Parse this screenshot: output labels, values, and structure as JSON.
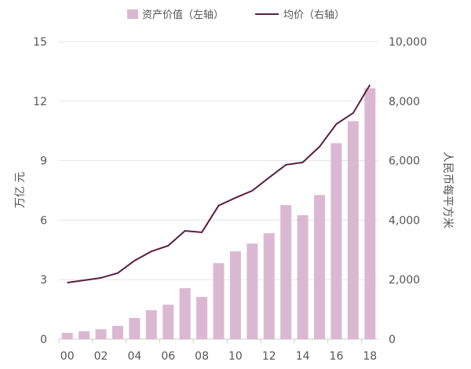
{
  "chart_data": {
    "type": "bar+line",
    "categories": [
      "00",
      "01",
      "02",
      "03",
      "04",
      "05",
      "06",
      "07",
      "08",
      "09",
      "10",
      "11",
      "12",
      "13",
      "14",
      "15",
      "16",
      "17",
      "18"
    ],
    "xtick_labels": [
      "00",
      "02",
      "04",
      "06",
      "08",
      "10",
      "12",
      "14",
      "16",
      "18"
    ],
    "series": [
      {
        "name": "资产价值（左轴）",
        "type": "bar",
        "axis": "left",
        "color": "#dbb8d2",
        "values": [
          0.32,
          0.4,
          0.5,
          0.67,
          1.07,
          1.46,
          1.74,
          2.57,
          2.13,
          3.83,
          4.43,
          4.82,
          5.34,
          6.76,
          6.25,
          7.27,
          9.88,
          10.99,
          12.65
        ]
      },
      {
        "name": "均价（右轴）",
        "type": "line",
        "axis": "right",
        "color": "#5a1f3f",
        "values": [
          1900,
          1980,
          2060,
          2220,
          2640,
          2950,
          3140,
          3640,
          3590,
          4490,
          4750,
          4990,
          5430,
          5860,
          5940,
          6470,
          7230,
          7600,
          8550
        ]
      }
    ],
    "ylabel_left": "万亿 元",
    "ylabel_right": "人民币每平方米",
    "ylim_left": [
      0,
      15
    ],
    "yticks_left": [
      "0",
      "3",
      "6",
      "9",
      "12",
      "15"
    ],
    "ylim_right": [
      0,
      10000
    ],
    "yticks_right": [
      "0",
      "2,000",
      "4,000",
      "6,000",
      "8,000",
      "10,000"
    ],
    "grid": true,
    "legend": "top"
  }
}
